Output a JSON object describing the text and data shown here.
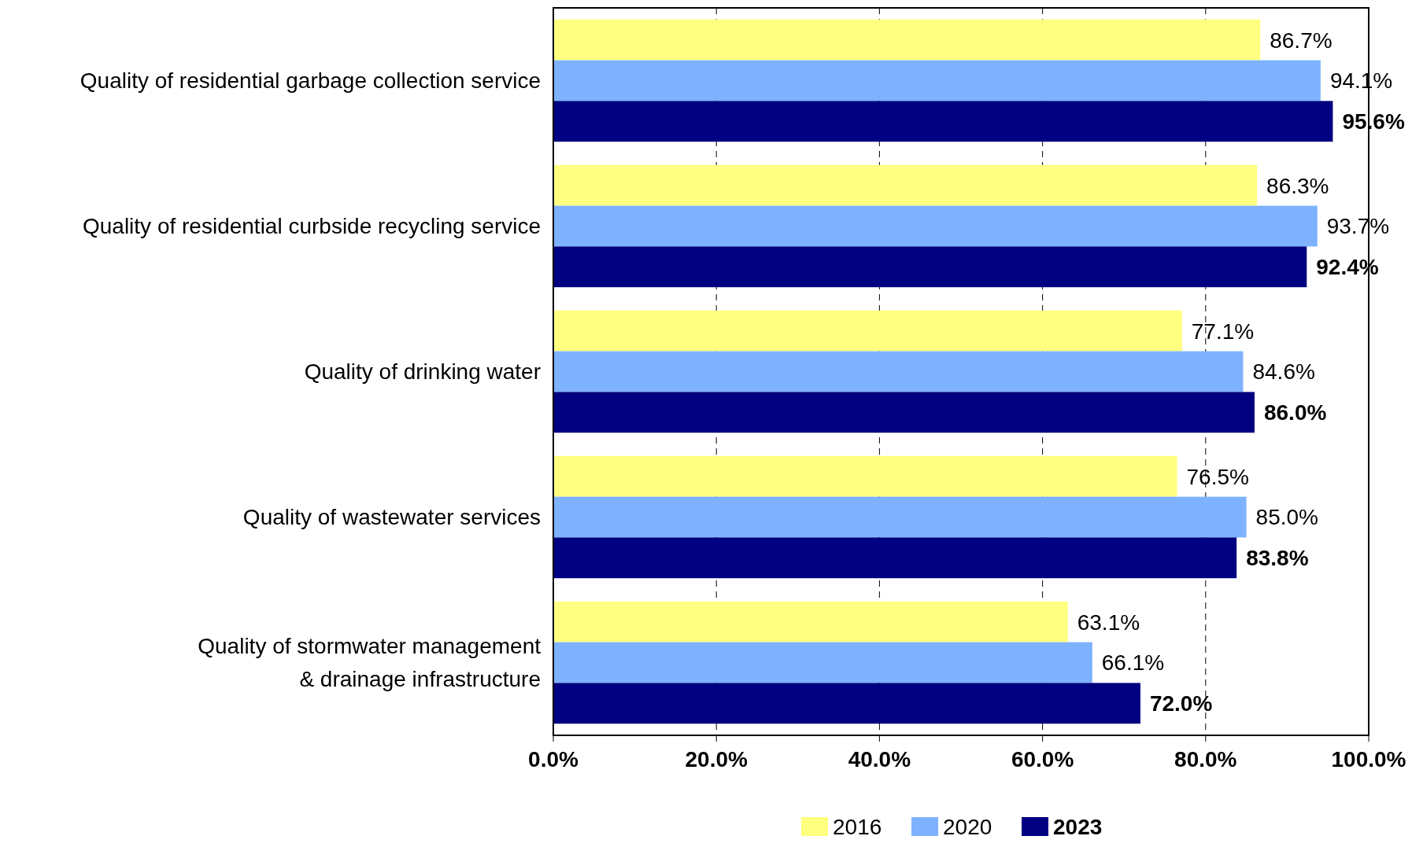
{
  "chart_data": {
    "type": "bar",
    "orientation": "horizontal",
    "categories": [
      "Quality of residential garbage collection service",
      "Quality of residential curbside recycling service",
      "Quality of drinking water",
      "Quality of wastewater services",
      "Quality of stormwater management & drainage infrastructure"
    ],
    "series": [
      {
        "name": "2016",
        "color": "#ffff80",
        "values": [
          86.7,
          86.3,
          77.1,
          76.5,
          63.1
        ],
        "value_labels": [
          "86.7%",
          "86.3%",
          "77.1%",
          "76.5%",
          "63.1%"
        ]
      },
      {
        "name": "2020",
        "color": "#7eb2ff",
        "values": [
          94.1,
          93.7,
          84.6,
          85.0,
          66.1
        ],
        "value_labels": [
          "94.1%",
          "93.7%",
          "84.6%",
          "85.0%",
          "66.1%"
        ]
      },
      {
        "name": "2023",
        "color": "#000080",
        "values": [
          95.6,
          92.4,
          86.0,
          83.8,
          72.0
        ],
        "value_labels": [
          "95.6%",
          "92.4%",
          "86.0%",
          "83.8%",
          "72.0%"
        ]
      }
    ],
    "xlim": [
      0,
      100
    ],
    "xticks": [
      {
        "value": 0,
        "label": "0.0%"
      },
      {
        "value": 20,
        "label": "20.0%"
      },
      {
        "value": 40,
        "label": "40.0%"
      },
      {
        "value": 60,
        "label": "60.0%"
      },
      {
        "value": 80,
        "label": "80.0%"
      },
      {
        "value": 100,
        "label": "100.0%"
      }
    ],
    "grid": "x",
    "legend": "bottom"
  }
}
